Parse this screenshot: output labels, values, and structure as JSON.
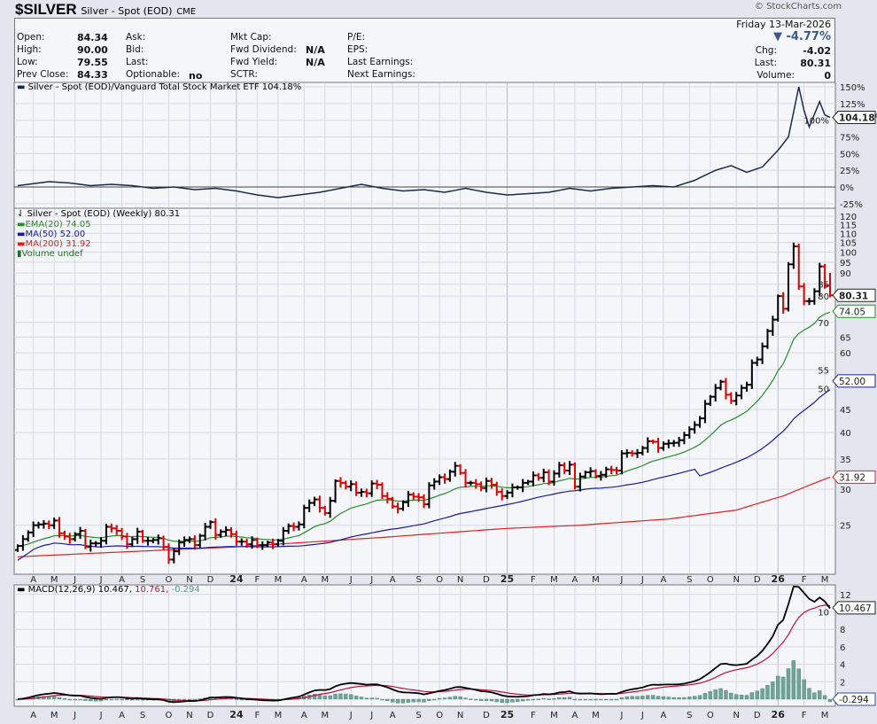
{
  "header": {
    "symbol": "$SILVER",
    "name": "Silver - Spot (EOD)",
    "exchange": "CME",
    "copyright": "© StockCharts.com",
    "date": "Friday  13-Mar-2026",
    "change_pct": "▼ -4.77%",
    "chg_label": "Chg:",
    "chg": "-4.02",
    "last_label": "Last:",
    "last": "80.31",
    "volume_label": "Volume:",
    "volume": "0"
  },
  "info": {
    "open_label": "Open:",
    "open": "84.34",
    "high_label": "High:",
    "high": "90.00",
    "low_label": "Low:",
    "low": "79.55",
    "prev_label": "Prev Close:",
    "prev": "84.33",
    "ask_label": "Ask:",
    "bid_label": "Bid:",
    "last_label": "Last:",
    "optionable_label": "Optionable:",
    "optionable": "no",
    "mktcap_label": "Mkt Cap:",
    "fwd_div_label": "Fwd Dividend:",
    "fwd_div": "N/A",
    "fwd_yield_label": "Fwd Yield:",
    "fwd_yield": "N/A",
    "sctr_label": "SCTR:",
    "pe_label": "P/E:",
    "eps_label": "EPS:",
    "last_earn_label": "Last Earnings:",
    "next_earn_label": "Next Earnings:"
  },
  "legends": {
    "ratio": "Silver - Spot (EOD)/Vanguard Total Stock Market ETF 104.18%",
    "price": "Silver - Spot (EOD) (Weekly) 80.31",
    "ema20": "EMA(20) 74.05",
    "ma50": "MA(50) 52.00",
    "ma200": "MA(200) 31.92",
    "volume": "Volume undef",
    "macd_a": "MACD(12,26,9) 10.467,",
    "macd_b": " 10.761,",
    "macd_c": " -0.294"
  },
  "tags": {
    "ratio": "104.18%",
    "price": "80.31",
    "ema20": "74.05",
    "ma50": "52.00",
    "ma200": "31.92",
    "macd": "10.467",
    "hist": "-0.294"
  },
  "colors": {
    "up": "#000000",
    "down": "#dd0000",
    "ema20": "#2a8a2a",
    "ma50": "#1a1aa0",
    "ma200": "#e02020",
    "ratio": "#1c2a4a",
    "macd": "#000000",
    "signal": "#c0103a",
    "hist": "#6fa595"
  },
  "chart_data": [
    {
      "type": "line",
      "title": "Silver - Spot (EOD)/Vanguard Total Stock Market ETF",
      "ylabel": "%",
      "yticks": [
        "150%",
        "125%",
        "100%",
        "75%",
        "50%",
        "25%",
        "0%",
        "-25%"
      ],
      "ylim": [
        -30,
        160
      ],
      "points": [
        [
          0,
          2
        ],
        [
          6,
          8
        ],
        [
          10,
          6
        ],
        [
          14,
          2
        ],
        [
          18,
          4
        ],
        [
          22,
          2
        ],
        [
          26,
          -2
        ],
        [
          30,
          0
        ],
        [
          34,
          -4
        ],
        [
          38,
          -2
        ],
        [
          42,
          -6
        ],
        [
          46,
          -12
        ],
        [
          50,
          -16
        ],
        [
          54,
          -12
        ],
        [
          58,
          -8
        ],
        [
          62,
          -2
        ],
        [
          66,
          4
        ],
        [
          70,
          -2
        ],
        [
          74,
          -6
        ],
        [
          78,
          -4
        ],
        [
          82,
          -8
        ],
        [
          86,
          -2
        ],
        [
          90,
          -8
        ],
        [
          94,
          -12
        ],
        [
          98,
          -10
        ],
        [
          102,
          -8
        ],
        [
          106,
          -2
        ],
        [
          110,
          -6
        ],
        [
          114,
          -2
        ],
        [
          118,
          0
        ],
        [
          122,
          2
        ],
        [
          126,
          0
        ],
        [
          130,
          10
        ],
        [
          134,
          25
        ],
        [
          137,
          32
        ],
        [
          140,
          22
        ],
        [
          143,
          30
        ],
        [
          146,
          55
        ],
        [
          148,
          75
        ],
        [
          150,
          150
        ],
        [
          151,
          115
        ],
        [
          152,
          90
        ],
        [
          154,
          128
        ],
        [
          155,
          108
        ],
        [
          156,
          104.18
        ]
      ]
    },
    {
      "type": "ohlc",
      "title": "Silver - Spot (EOD) (Weekly)",
      "scale": "log",
      "yticks": [
        25,
        30,
        35,
        40,
        45,
        50,
        55,
        60,
        65,
        70,
        80,
        85,
        90,
        95,
        100,
        105,
        110,
        115,
        120
      ],
      "last_bar": {
        "open": 84.34,
        "high": 90.0,
        "low": 79.55,
        "close": 80.31
      },
      "closes": [
        22.5,
        23.3,
        24.1,
        25.0,
        25.1,
        25.2,
        25.0,
        25.6,
        24.0,
        23.6,
        23.3,
        23.9,
        24.3,
        22.4,
        22.8,
        22.8,
        23.1,
        24.8,
        24.6,
        24.3,
        23.6,
        22.7,
        23.3,
        24.2,
        23.1,
        23.1,
        23.2,
        23.4,
        22.4,
        21.0,
        21.9,
        22.9,
        23.2,
        23.3,
        22.6,
        23.7,
        24.8,
        25.4,
        23.8,
        24.2,
        24.4,
        23.9,
        23.0,
        23.0,
        22.7,
        23.2,
        22.6,
        22.6,
        22.9,
        22.7,
        23.1,
        24.3,
        24.9,
        24.8,
        25.1,
        27.3,
        28.0,
        28.5,
        27.3,
        26.6,
        28.3,
        31.3,
        31.0,
        30.4,
        30.8,
        29.5,
        29.6,
        29.4,
        30.9,
        30.7,
        29.0,
        28.6,
        27.5,
        27.2,
        28.1,
        29.2,
        28.9,
        28.8,
        27.8,
        30.6,
        31.2,
        31.9,
        31.6,
        32.8,
        33.8,
        32.6,
        31.0,
        31.0,
        30.8,
        30.2,
        31.3,
        30.7,
        29.6,
        29.0,
        29.5,
        30.3,
        30.3,
        31.0,
        31.2,
        32.2,
        31.8,
        32.7,
        31.2,
        32.5,
        33.9,
        33.0,
        34.0,
        30.4,
        32.0,
        32.7,
        32.9,
        32.1,
        32.3,
        33.2,
        33.1,
        33.0,
        36.0,
        36.1,
        36.0,
        36.1,
        37.0,
        38.3,
        38.2,
        37.0,
        37.8,
        37.9,
        38.0,
        38.5,
        39.5,
        40.7,
        41.6,
        43.0,
        46.3,
        48.0,
        50.2,
        51.8,
        48.5,
        47.0,
        48.3,
        50.2,
        51.0,
        57.0,
        58.0,
        62.0,
        67.0,
        71.0,
        80.0,
        75.0,
        94.0,
        103.0,
        84.0,
        78.0,
        78.0,
        82.0,
        93.0,
        84.33,
        80.31
      ],
      "ma200_points": [
        [
          0,
          21.3
        ],
        [
          42,
          22.4
        ],
        [
          70,
          23.5
        ],
        [
          94,
          24.6
        ],
        [
          108,
          25.0
        ],
        [
          125,
          25.8
        ],
        [
          138,
          27.0
        ],
        [
          147,
          29.0
        ],
        [
          156,
          31.92
        ]
      ],
      "ema20_last": 74.05,
      "ma50_last": 52.0,
      "ma200_last": 31.92
    },
    {
      "type": "line+bar",
      "title": "MACD(12,26,9)",
      "yticks": [
        12,
        10,
        8,
        6,
        4,
        2
      ],
      "macd_last": 10.467,
      "signal_last": 10.761,
      "hist_last": -0.294
    }
  ],
  "x_axis": {
    "start_date": "2023-03-17",
    "months": [
      "A",
      "M",
      "J",
      "J",
      "A",
      "S",
      "O",
      "N",
      "D",
      "24",
      "F",
      "M",
      "A",
      "M",
      "J",
      "J",
      "A",
      "S",
      "O",
      "N",
      "D",
      "25",
      "F",
      "M",
      "A",
      "M",
      "J",
      "J",
      "A",
      "S",
      "O",
      "N",
      "D",
      "26",
      "F",
      "M"
    ]
  }
}
